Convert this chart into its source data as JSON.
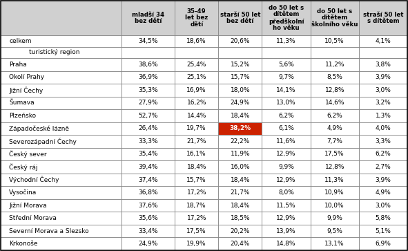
{
  "col_headers": [
    "mladší 34\nbez dětí",
    "35-49\nlet bez\ndětí",
    "starší 50 let\nbez dětí",
    "do 50 let s\ndítětem\npředškolní\nho věku",
    "do 50 let s\ndítětem\nškolního věku",
    "straší 50 let\ns dítětem"
  ],
  "celkem_row": [
    "celkem",
    "34,5%",
    "18,6%",
    "20,6%",
    "11,3%",
    "10,5%",
    "4,1%"
  ],
  "section_header": "turistický region",
  "rows": [
    [
      "Praha",
      "38,6%",
      "25,4%",
      "15,2%",
      "5,6%",
      "11,2%",
      "3,8%"
    ],
    [
      "Okolí Prahy",
      "36,9%",
      "25,1%",
      "15,7%",
      "9,7%",
      "8,5%",
      "3,9%"
    ],
    [
      "Jižní Čechy",
      "35,3%",
      "16,9%",
      "18,0%",
      "14,1%",
      "12,8%",
      "3,0%"
    ],
    [
      "Šumava",
      "27,9%",
      "16,2%",
      "24,9%",
      "13,0%",
      "14,6%",
      "3,2%"
    ],
    [
      "Plzeňsko",
      "52,7%",
      "14,4%",
      "18,4%",
      "6,2%",
      "6,2%",
      "1,3%"
    ],
    [
      "Západočeské lázně",
      "26,4%",
      "19,7%",
      "38,2%",
      "6,1%",
      "4,9%",
      "4,0%"
    ],
    [
      "Severozápadní Čechy",
      "33,3%",
      "21,7%",
      "22,2%",
      "11,6%",
      "7,7%",
      "3,3%"
    ],
    [
      "Český sever",
      "35,4%",
      "16,1%",
      "11,9%",
      "12,9%",
      "17,5%",
      "6,2%"
    ],
    [
      "Český ráj",
      "39,4%",
      "18,4%",
      "16,0%",
      "9,9%",
      "12,8%",
      "2,7%"
    ],
    [
      "Východní Čechy",
      "37,4%",
      "15,7%",
      "18,4%",
      "12,9%",
      "11,3%",
      "3,9%"
    ],
    [
      "Vysočina",
      "36,8%",
      "17,2%",
      "21,7%",
      "8,0%",
      "10,9%",
      "4,9%"
    ],
    [
      "Jižní Morava",
      "37,6%",
      "18,7%",
      "18,4%",
      "11,5%",
      "10,0%",
      "3,0%"
    ],
    [
      "Střední Morava",
      "35,6%",
      "17,2%",
      "18,5%",
      "12,9%",
      "9,9%",
      "5,8%"
    ],
    [
      "Severní Morava a Slezsko",
      "33,4%",
      "17,5%",
      "20,2%",
      "13,9%",
      "9,5%",
      "5,1%"
    ],
    [
      "Krkonoše",
      "24,9%",
      "19,9%",
      "20,4%",
      "14,8%",
      "13,1%",
      "6,9%"
    ]
  ],
  "highlight_cell": [
    5,
    3
  ],
  "highlight_color": "#cc2200",
  "border_color": "#888888",
  "text_color": "#000000",
  "header_bg": "#d0d0d0",
  "font_size_header": 6.2,
  "font_size_data": 6.5,
  "font_size_section": 6.5
}
